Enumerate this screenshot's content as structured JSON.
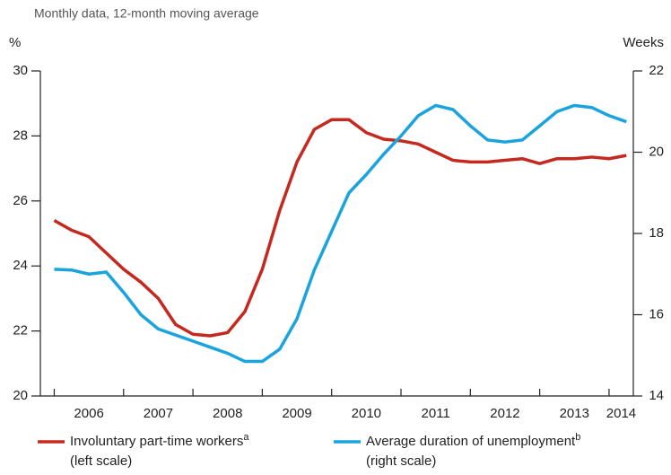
{
  "chart_data": {
    "type": "line",
    "subtitle": "Monthly data, 12-month moving average",
    "y_label": "%",
    "y2_label": "Weeks",
    "x": [
      2006.0,
      2006.25,
      2006.5,
      2006.75,
      2007.0,
      2007.25,
      2007.5,
      2007.75,
      2008.0,
      2008.25,
      2008.5,
      2008.75,
      2009.0,
      2009.25,
      2009.5,
      2009.75,
      2010.0,
      2010.25,
      2010.5,
      2010.75,
      2011.0,
      2011.25,
      2011.5,
      2011.75,
      2012.0,
      2012.25,
      2012.5,
      2012.75,
      2013.0,
      2013.25,
      2013.5,
      2013.75,
      2014.0,
      2014.25
    ],
    "series": [
      {
        "name": "Involuntary part-time workers",
        "footnote": "a",
        "scale": "(left scale)",
        "color": "#c4281e",
        "axis": "y",
        "values": [
          25.4,
          25.1,
          24.9,
          24.4,
          23.9,
          23.5,
          23.0,
          22.2,
          21.9,
          21.85,
          21.95,
          22.6,
          23.9,
          25.7,
          27.2,
          28.2,
          28.5,
          28.5,
          28.1,
          27.9,
          27.85,
          27.75,
          27.5,
          27.25,
          27.2,
          27.2,
          27.25,
          27.3,
          27.15,
          27.3,
          27.3,
          27.35,
          27.3,
          27.4
        ]
      },
      {
        "name": "Average duration of unemployment",
        "footnote": "b",
        "scale": "(right scale)",
        "color": "#1aa3dd",
        "axis": "y2",
        "values": [
          17.12,
          17.1,
          17.0,
          17.05,
          16.55,
          16.0,
          15.65,
          15.5,
          15.35,
          15.2,
          15.05,
          14.85,
          14.85,
          15.15,
          15.9,
          17.1,
          18.05,
          19.0,
          19.45,
          19.95,
          20.4,
          20.9,
          21.15,
          21.05,
          20.65,
          20.3,
          20.25,
          20.3,
          20.65,
          21.0,
          21.15,
          21.1,
          20.9,
          20.75
        ]
      }
    ],
    "xlim": [
      2005.8,
      2014.35
    ],
    "xticks": [
      2006,
      2007,
      2008,
      2009,
      2010,
      2011,
      2012,
      2013,
      2014
    ],
    "ylim": [
      20,
      30
    ],
    "yticks": [
      20,
      22,
      24,
      26,
      28,
      30
    ],
    "y2lim": [
      14,
      22
    ],
    "y2ticks": [
      14,
      16,
      18,
      20,
      22
    ],
    "grid": false
  }
}
